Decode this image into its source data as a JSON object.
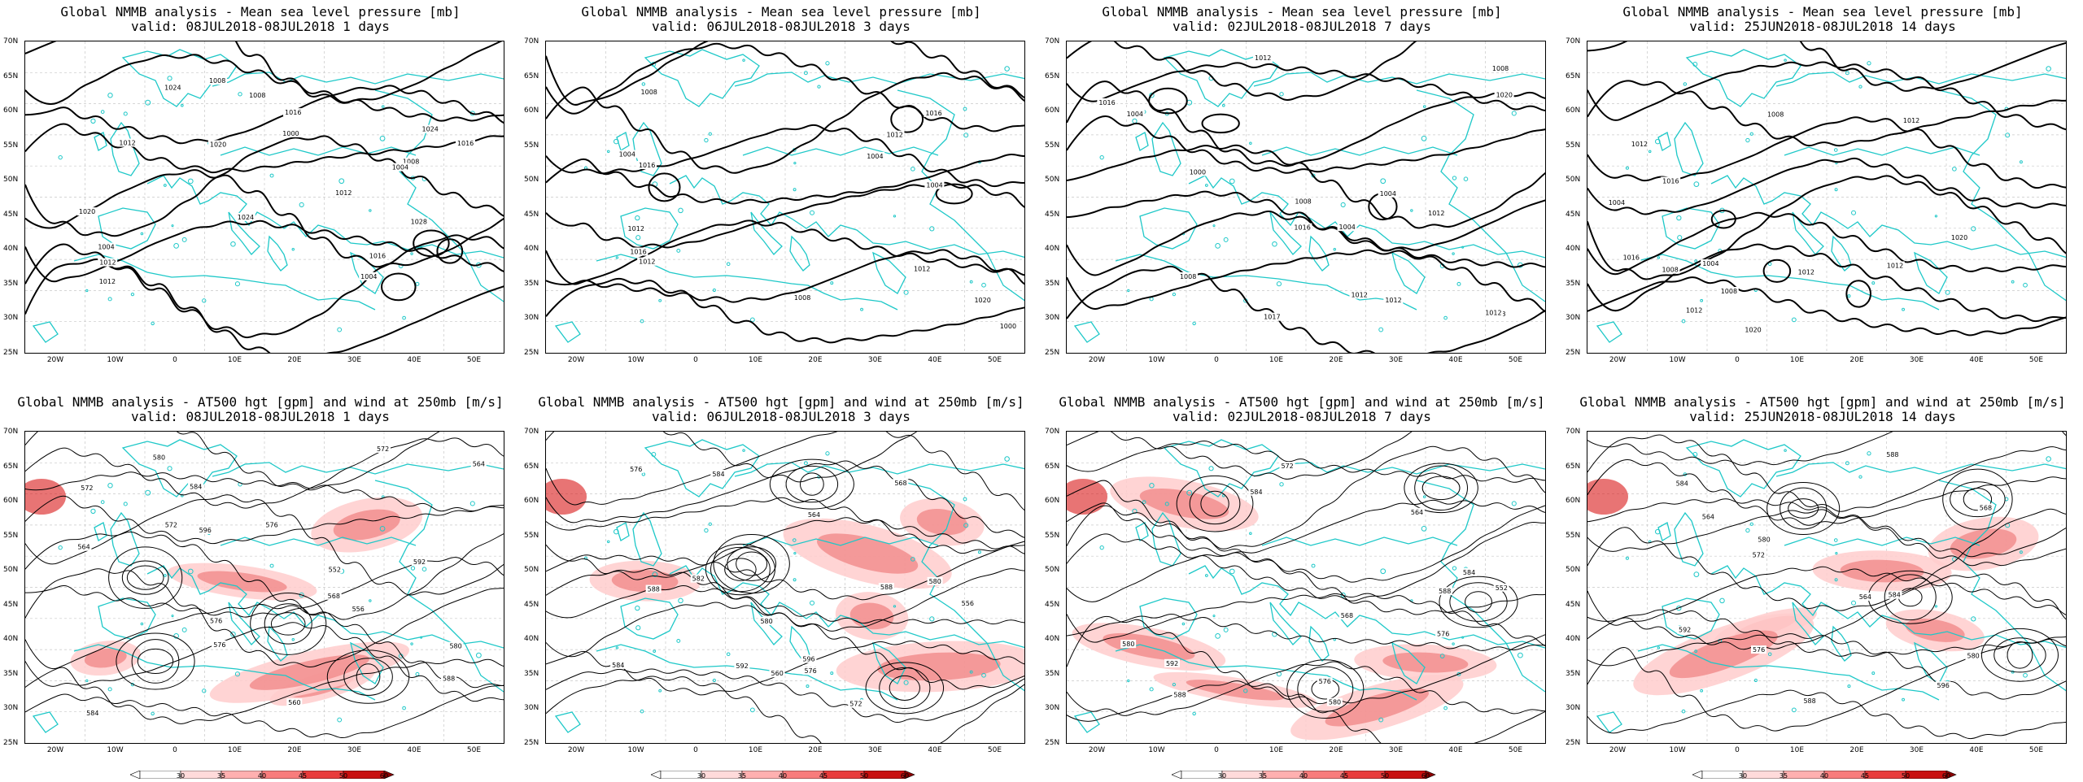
{
  "top_row": [
    {
      "title_line1": "Global NMMB analysis - Mean sea level pressure [mb]",
      "title_line2": "valid: 08JUL2018-08JUL2018  1 days",
      "contour_labels": [
        "1008",
        "1012",
        "1016",
        "1020",
        "1024",
        "1024",
        "1028",
        "1020",
        "1016",
        "1012",
        "1008",
        "1004",
        "1004",
        "1012",
        "1016",
        "1008",
        "1024",
        "1012",
        "1004",
        "1000"
      ]
    },
    {
      "title_line1": "Global NMMB analysis - Mean sea level pressure [mb]",
      "title_line2": "valid: 06JUL2018-08JUL2018  3 days",
      "contour_labels": [
        "1004",
        "1008",
        "1016",
        "1012",
        "1004",
        "1016",
        "1020",
        "1012",
        "1008",
        "1004",
        "1000",
        "1012",
        "1016",
        "1012"
      ]
    },
    {
      "title_line1": "Global NMMB analysis - Mean sea level pressure [mb]",
      "title_line2": "valid: 02JUL2018-08JUL2018  7 days",
      "contour_labels": [
        "1012",
        "1008",
        "1004",
        "1012",
        "1020",
        "1008",
        "1016",
        "1012",
        "1017",
        "1016",
        "1012",
        "1008",
        "1004",
        "1008",
        "1000",
        "1004",
        "1012"
      ]
    },
    {
      "title_line1": "Global NMMB analysis - Mean sea level pressure [mb]",
      "title_line2": "valid: 25JUN2018-08JUL2018  14 days",
      "contour_labels": [
        "1012",
        "1020",
        "1008",
        "1012",
        "1012",
        "1020",
        "1016",
        "1016",
        "1012",
        "1008",
        "1004",
        "1008",
        "1004",
        "1012"
      ]
    }
  ],
  "bottom_row": [
    {
      "title_line1": "Global NMMB analysis - AT500 hgt [gpm] and wind at 250mb [m/s]",
      "title_line2": "valid: 08JUL2018-08JUL2018  1 days",
      "contour_labels": [
        "552",
        "556",
        "560",
        "564",
        "568",
        "572",
        "576",
        "580",
        "584",
        "588",
        "592",
        "596",
        "564",
        "572",
        "576",
        "580",
        "584",
        "576",
        "572"
      ]
    },
    {
      "title_line1": "Global NMMB analysis - AT500 hgt [gpm] and wind at 250mb [m/s]",
      "title_line2": "valid: 06JUL2018-08JUL2018  3 days",
      "contour_labels": [
        "582",
        "568",
        "576",
        "580",
        "584",
        "556",
        "560",
        "564",
        "572",
        "576",
        "584",
        "588",
        "592",
        "596",
        "580",
        "584",
        "588"
      ]
    },
    {
      "title_line1": "Global NMMB analysis - AT500 hgt [gpm] and wind at 250mb [m/s]",
      "title_line2": "valid: 02JUL2018-08JUL2018  7 days",
      "contour_labels": [
        "552",
        "576",
        "564",
        "568",
        "572",
        "576",
        "580",
        "584",
        "588",
        "592",
        "584",
        "580",
        "588"
      ]
    },
    {
      "title_line1": "Global NMMB analysis - AT500 hgt [gpm] and wind at 250mb [m/s]",
      "title_line2": "valid: 25JUN2018-08JUL2018  14 days",
      "contour_labels": [
        "564",
        "568",
        "572",
        "576",
        "580",
        "584",
        "588",
        "592",
        "596",
        "580",
        "584",
        "588",
        "564"
      ]
    }
  ],
  "lat_labels": [
    "70N",
    "65N",
    "60N",
    "55N",
    "50N",
    "45N",
    "40N",
    "35N",
    "30N",
    "25N"
  ],
  "lon_labels": [
    "20W",
    "10W",
    "0",
    "10E",
    "20E",
    "30E",
    "40E",
    "50E"
  ],
  "colorbar_labels": [
    "30",
    "35",
    "40",
    "45",
    "50",
    "60"
  ],
  "colors": {
    "coast": "#1ec8c8",
    "contour": "#000000",
    "wind_light": "#ffcccc",
    "wind_mid": "#f08080",
    "wind_dark": "#d81818",
    "grid": "#c8c8c8"
  }
}
